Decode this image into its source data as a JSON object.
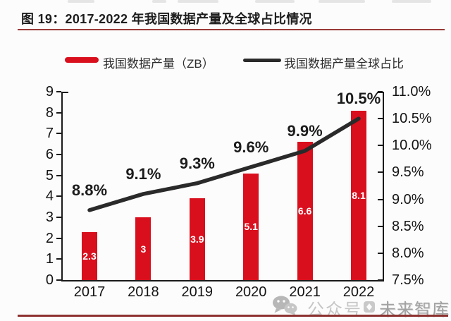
{
  "header": {
    "title": "图 19：2017-2022 年我国数据产量及全球占比情况"
  },
  "legend": {
    "bar_label": "我国数据产量（ZB）",
    "line_label": "我国数据产量全球占比"
  },
  "watermark": {
    "wechat_icon": "wechat-icon",
    "account_text": "公众号",
    "brand_icon": "brand-logo-icon",
    "brand_text": "未来智库"
  },
  "colors": {
    "bar": "#d90f1d",
    "line": "#2a2a2a",
    "axis": "#1a1a1a",
    "title_rule": "#9a3a38",
    "bottom_rule": "#8c3230",
    "bar_value_text": "#ffffff",
    "watermark_gray": "#bdbdbd"
  },
  "chart_data": {
    "type": "bar",
    "combo": "bar+line",
    "title": "2017-2022 年我国数据产量及全球占比情况",
    "categories": [
      "2017",
      "2018",
      "2019",
      "2020",
      "2021",
      "2022"
    ],
    "series": [
      {
        "name": "我国数据产量（ZB）",
        "type": "bar",
        "axis": "left",
        "values": [
          2.3,
          3,
          3.9,
          5.1,
          6.6,
          8.1
        ],
        "value_labels": [
          "2.3",
          "3",
          "3.9",
          "5.1",
          "6.6",
          "8.1"
        ],
        "color": "#d90f1d"
      },
      {
        "name": "我国数据产量全球占比",
        "type": "line",
        "axis": "right",
        "values": [
          8.8,
          9.1,
          9.3,
          9.6,
          9.9,
          10.5
        ],
        "value_labels": [
          "8.8%",
          "9.1%",
          "9.3%",
          "9.6%",
          "9.9%",
          "10.5%"
        ],
        "color": "#2a2a2a"
      }
    ],
    "left_axis": {
      "min": 0,
      "max": 9,
      "step": 1,
      "ticks": [
        "0",
        "1",
        "2",
        "3",
        "4",
        "5",
        "6",
        "7",
        "8",
        "9"
      ]
    },
    "right_axis": {
      "min": 7.5,
      "max": 11.0,
      "step": 0.5,
      "ticks": [
        "7.5%",
        "8.0%",
        "8.5%",
        "9.0%",
        "9.5%",
        "10.0%",
        "10.5%",
        "11.0%"
      ]
    },
    "grid": false,
    "legend_position": "top"
  }
}
